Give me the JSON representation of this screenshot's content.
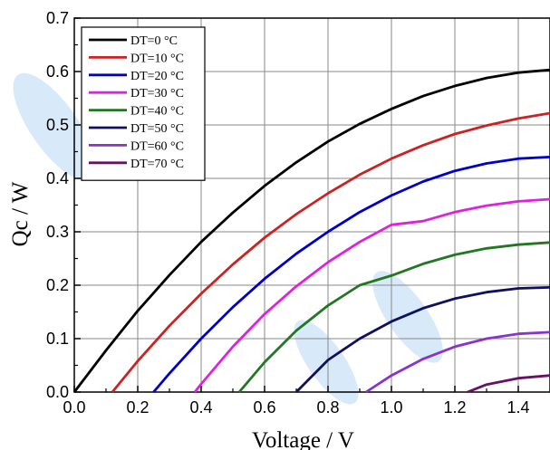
{
  "chart_data": {
    "type": "line",
    "xlabel": "Voltage / V",
    "ylabel": "Qc / W",
    "xlim": [
      0.0,
      1.5
    ],
    "ylim": [
      0.0,
      0.7
    ],
    "xticks": [
      "0.0",
      "0.2",
      "0.4",
      "0.6",
      "0.8",
      "1.0",
      "1.2",
      "1.4"
    ],
    "yticks": [
      "0.0",
      "0.1",
      "0.2",
      "0.3",
      "0.4",
      "0.5",
      "0.6",
      "0.7"
    ],
    "grid": true,
    "legend_position": "top-left",
    "series": [
      {
        "name": "DT=0 °C",
        "color": "#000000",
        "x": [
          0.0,
          0.1,
          0.2,
          0.3,
          0.4,
          0.5,
          0.6,
          0.7,
          0.8,
          0.9,
          1.0,
          1.1,
          1.2,
          1.3,
          1.4,
          1.5
        ],
        "y": [
          0.0,
          0.078,
          0.152,
          0.219,
          0.281,
          0.336,
          0.386,
          0.43,
          0.469,
          0.502,
          0.53,
          0.554,
          0.573,
          0.588,
          0.598,
          0.603
        ]
      },
      {
        "name": "DT=10 °C",
        "color": "#cc2222",
        "x": [
          0.12,
          0.2,
          0.3,
          0.4,
          0.5,
          0.6,
          0.7,
          0.8,
          0.9,
          1.0,
          1.1,
          1.2,
          1.3,
          1.4,
          1.5
        ],
        "y": [
          0.0,
          0.058,
          0.124,
          0.184,
          0.239,
          0.289,
          0.333,
          0.372,
          0.407,
          0.437,
          0.462,
          0.483,
          0.499,
          0.512,
          0.522
        ]
      },
      {
        "name": "DT=20 °C",
        "color": "#0000cc",
        "x": [
          0.25,
          0.3,
          0.4,
          0.5,
          0.6,
          0.7,
          0.8,
          0.9,
          1.0,
          1.1,
          1.2,
          1.3,
          1.4,
          1.5
        ],
        "y": [
          0.0,
          0.035,
          0.1,
          0.159,
          0.212,
          0.259,
          0.3,
          0.337,
          0.368,
          0.394,
          0.414,
          0.428,
          0.437,
          0.44
        ]
      },
      {
        "name": "DT=30 °C",
        "color": "#dd22dd",
        "x": [
          0.38,
          0.4,
          0.5,
          0.6,
          0.7,
          0.8,
          0.9,
          1.0,
          1.1,
          1.2,
          1.3,
          1.4,
          1.5
        ],
        "y": [
          0.0,
          0.015,
          0.085,
          0.146,
          0.198,
          0.243,
          0.281,
          0.313,
          0.32,
          0.337,
          0.349,
          0.357,
          0.361
        ]
      },
      {
        "name": "DT=40 °C",
        "color": "#227722",
        "x": [
          0.52,
          0.6,
          0.7,
          0.8,
          0.9,
          1.0,
          1.1,
          1.2,
          1.3,
          1.4,
          1.5
        ],
        "y": [
          0.0,
          0.056,
          0.115,
          0.162,
          0.2,
          0.218,
          0.24,
          0.257,
          0.269,
          0.276,
          0.28
        ]
      },
      {
        "name": "DT=50 °C",
        "color": "#101060",
        "x": [
          0.7,
          0.8,
          0.9,
          1.0,
          1.1,
          1.2,
          1.3,
          1.4,
          1.5
        ],
        "y": [
          0.0,
          0.06,
          0.1,
          0.132,
          0.157,
          0.175,
          0.187,
          0.194,
          0.196
        ]
      },
      {
        "name": "DT=60 °C",
        "color": "#8833cc",
        "x": [
          0.92,
          1.0,
          1.1,
          1.2,
          1.3,
          1.4,
          1.5
        ],
        "y": [
          0.0,
          0.031,
          0.062,
          0.085,
          0.1,
          0.109,
          0.112
        ]
      },
      {
        "name": "DT=70 °C",
        "color": "#661166",
        "x": [
          1.24,
          1.3,
          1.4,
          1.5
        ],
        "y": [
          0.0,
          0.014,
          0.026,
          0.031
        ]
      }
    ]
  }
}
